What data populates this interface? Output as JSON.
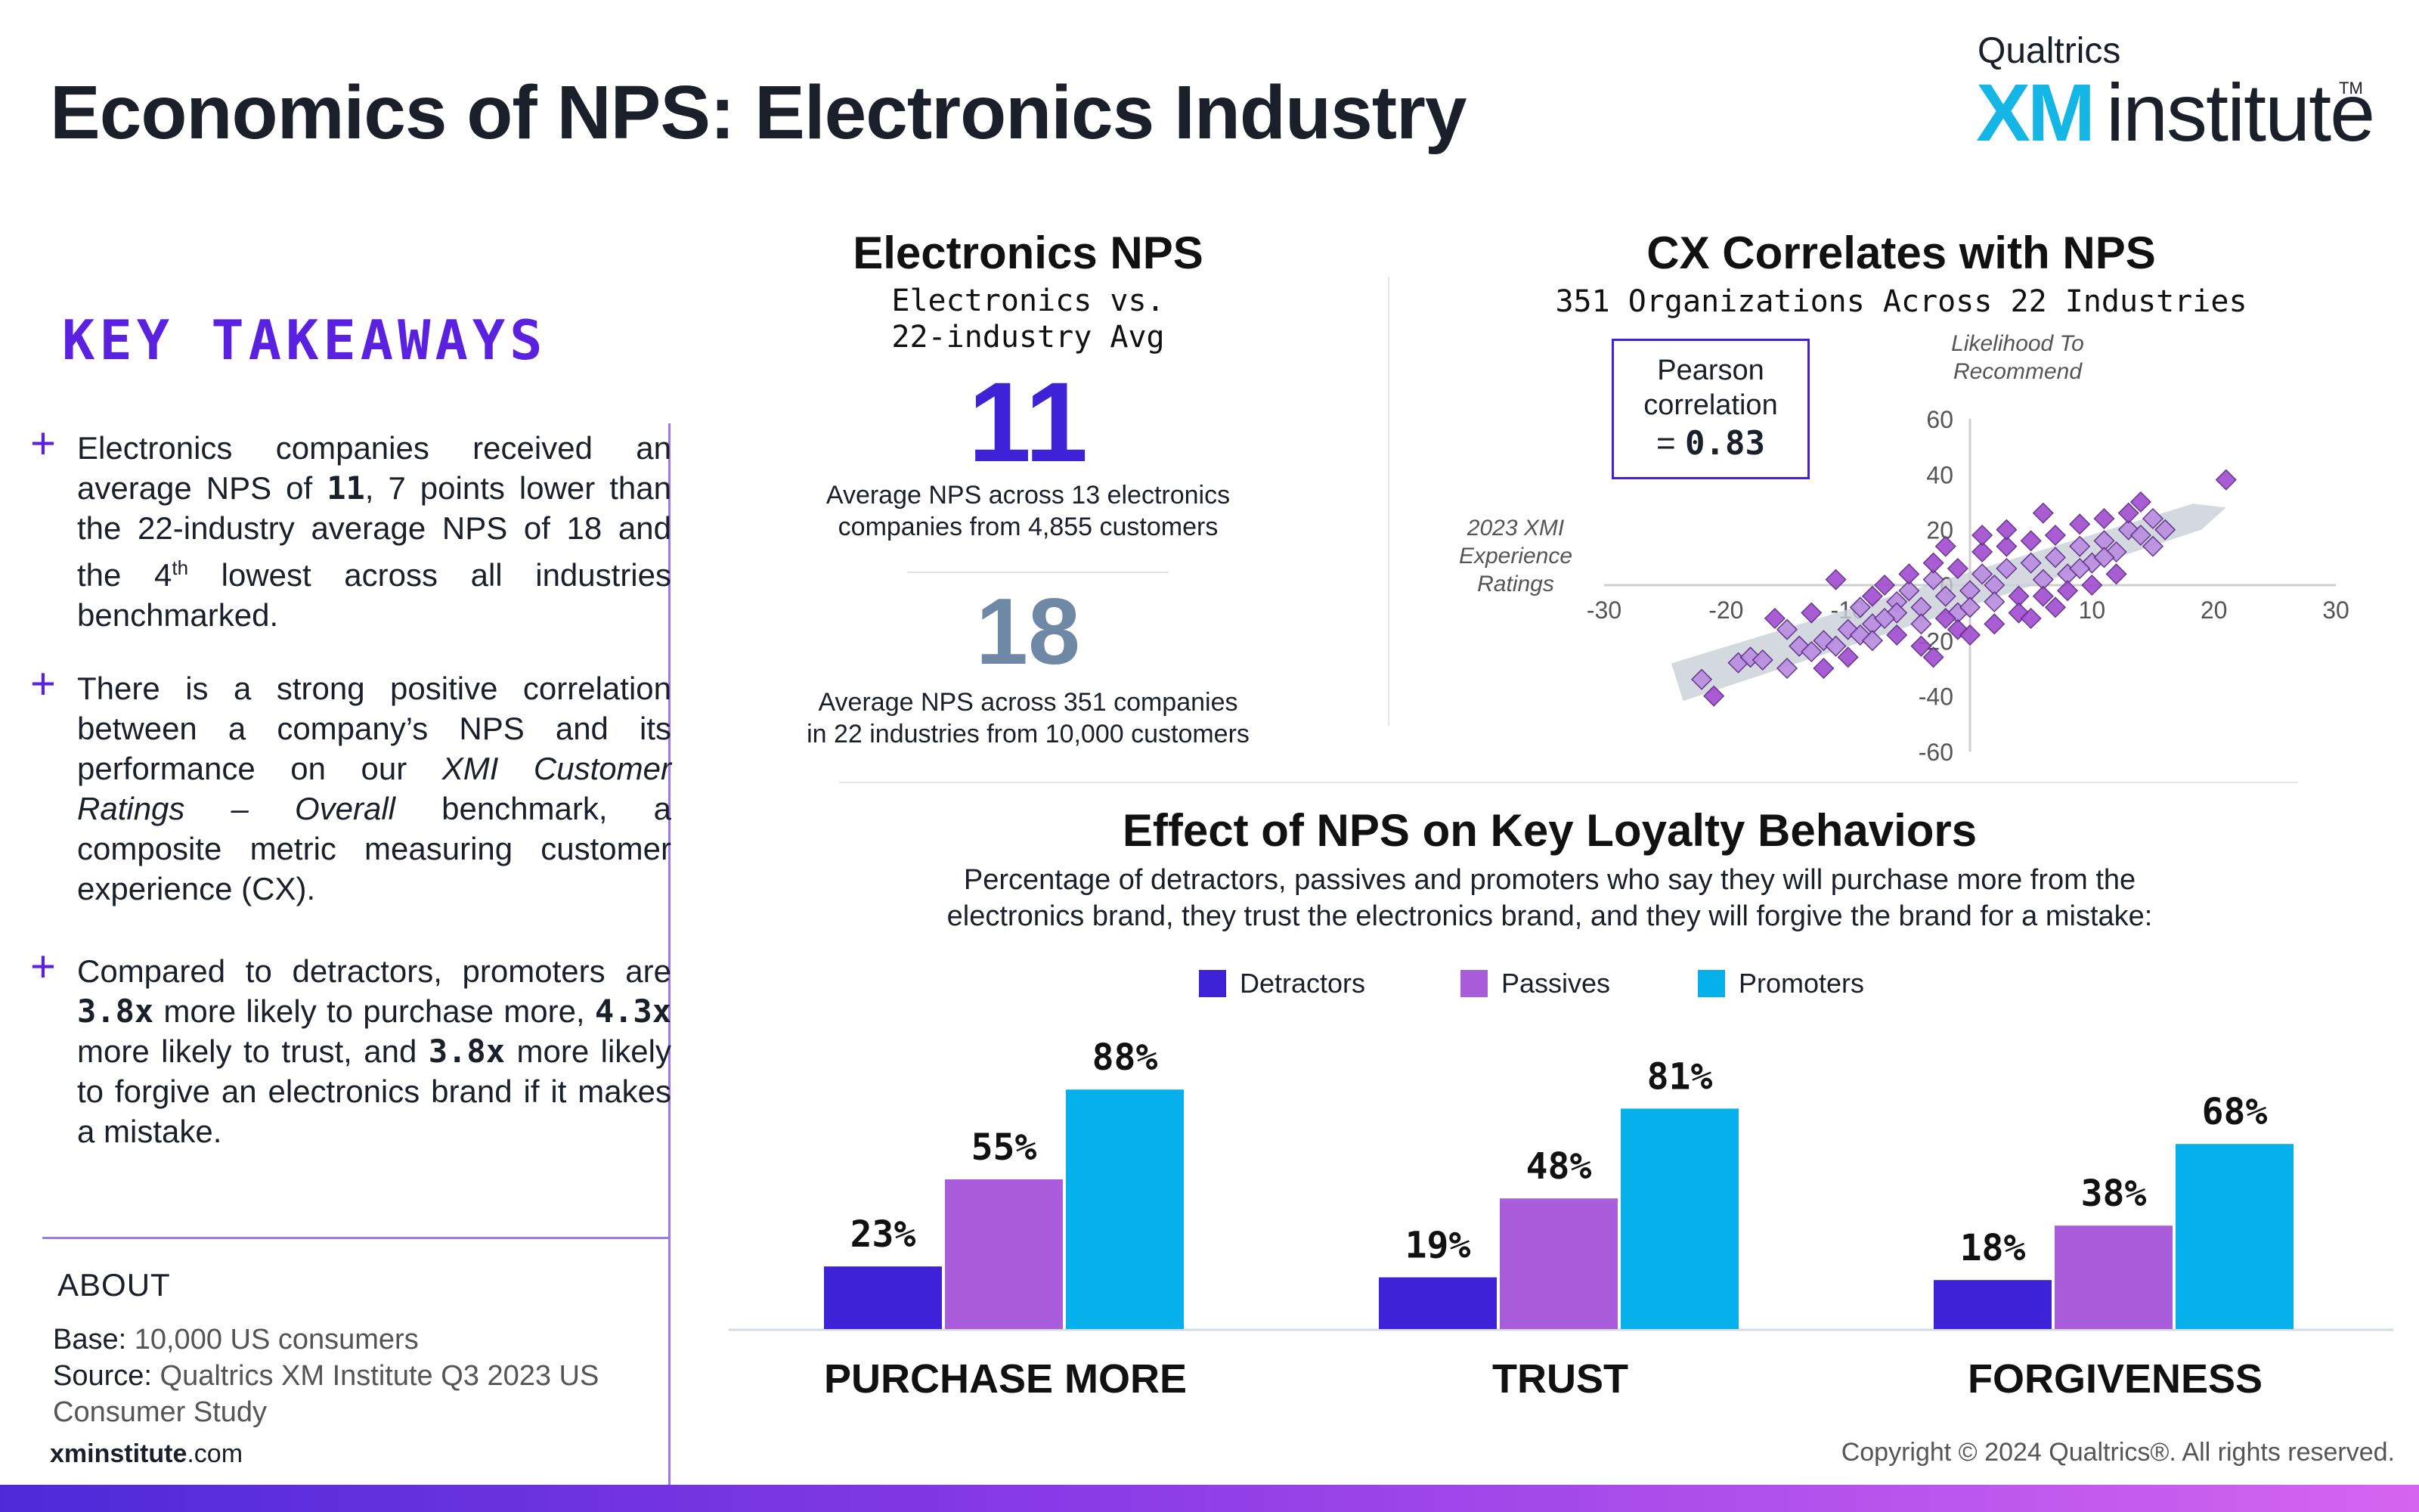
{
  "header": {
    "title": "Economics of NPS: Electronics Industry",
    "brand_top": "Qualtrics",
    "brand_xm": "XM",
    "brand_institute": "institute",
    "brand_tm": "TM"
  },
  "takeaways": {
    "title": "KEY TAKEAWAYS",
    "items": [
      {
        "t1": "Electronics companies received an average NPS of ",
        "b1": "11",
        "t2": ", 7 points lower than the 22-industry average NPS of 18 and the 4",
        "sup": "th",
        "t3": " lowest across all industries benchmarked."
      },
      {
        "t1": " There is a strong positive correlation between a company’s NPS and its performance on our ",
        "i1": "XMI Customer Ratings – Overall",
        "t2": " benchmark, a composite metric measuring customer experience (CX)."
      },
      {
        "t1": "Compared to detractors, promoters are ",
        "b1": "3.8x",
        "t2": " more likely to purchase more, ",
        "b2": "4.3x",
        "t3": " more likely to trust, and ",
        "b3": "3.8x",
        "t4": " more likely to forgive an electronics brand if it makes a mistake."
      }
    ]
  },
  "about": {
    "title": "ABOUT",
    "base_key": "Base:",
    "base_val": " 10,000 US consumers",
    "source_key": "Source:",
    "source_val1": " Qualtrics XM Institute Q3 2023 US",
    "source_val2": "Consumer Study",
    "site_bold": "xminstitute",
    "site_rest": ".com"
  },
  "copyright": "Copyright © 2024 Qualtrics®. All rights reserved.",
  "nps": {
    "title": "Electronics NPS",
    "sub1": "Electronics vs.",
    "sub2": "22-industry Avg",
    "value_main": "11",
    "cap_main1": "Average NPS across 13 electronics",
    "cap_main2": "companies from 4,855 customers",
    "value_avg": "18",
    "cap_avg1": "Average NPS across 351 companies",
    "cap_avg2": "in 22 industries from 10,000 customers"
  },
  "cx": {
    "title": "CX Correlates with NPS",
    "subtitle": "351 Organizations Across 22 Industries",
    "pearson_l1": "Pearson",
    "pearson_l2": "correlation",
    "pearson_eq": "= ",
    "pearson_val": "0.83",
    "y_label1": "Likelihood To",
    "y_label2": "Recommend",
    "x_label1": "2023 XMI",
    "x_label2": "Experience",
    "x_label3": "Ratings"
  },
  "effect": {
    "title": "Effect of NPS on Key Loyalty Behaviors",
    "sub1": "Percentage of detractors, passives and promoters who say they will purchase more from the",
    "sub2": "electronics brand, they trust the electronics brand, and they will forgive the brand for a mistake:"
  },
  "chart_data": [
    {
      "type": "scatter",
      "title": "CX Correlates with NPS",
      "subtitle": "351 Organizations Across 22 Industries",
      "xlabel": "2023 XMI Experience Ratings",
      "ylabel": "Likelihood To Recommend",
      "xlim": [
        -30,
        30
      ],
      "ylim": [
        -60,
        60
      ],
      "xticks": [
        -30,
        -20,
        -10,
        0,
        10,
        20,
        30
      ],
      "yticks": [
        -60,
        -40,
        -20,
        0,
        20,
        40,
        60
      ],
      "tick_labels_x": [
        "-30",
        "-20",
        "-10",
        "10",
        "20",
        "30"
      ],
      "tick_labels_y": [
        "60",
        "40",
        "20",
        "0",
        "-20",
        "-40",
        "-60"
      ],
      "annotation": "Pearson correlation = 0.83",
      "trend": {
        "x": [
          -24,
          21
        ],
        "y": [
          -35,
          28
        ]
      },
      "points": [
        [
          21,
          38
        ],
        [
          -21,
          -40
        ],
        [
          -22,
          -34
        ],
        [
          -19,
          -28
        ],
        [
          -18,
          -26
        ],
        [
          -17,
          -27
        ],
        [
          -15,
          -30
        ],
        [
          -14,
          -22
        ],
        [
          -13,
          -24
        ],
        [
          -12,
          -20
        ],
        [
          -11,
          -22
        ],
        [
          -10,
          -16
        ],
        [
          -9,
          -18
        ],
        [
          -8,
          -14
        ],
        [
          -11,
          2
        ],
        [
          -8,
          -4
        ],
        [
          -7,
          0
        ],
        [
          -6,
          -6
        ],
        [
          -5,
          -2
        ],
        [
          -4,
          -8
        ],
        [
          -3,
          2
        ],
        [
          -2,
          -4
        ],
        [
          -1,
          -10
        ],
        [
          0,
          -2
        ],
        [
          1,
          4
        ],
        [
          2,
          0
        ],
        [
          3,
          6
        ],
        [
          4,
          -4
        ],
        [
          5,
          8
        ],
        [
          6,
          2
        ],
        [
          7,
          10
        ],
        [
          8,
          4
        ],
        [
          9,
          14
        ],
        [
          10,
          8
        ],
        [
          11,
          16
        ],
        [
          12,
          12
        ],
        [
          13,
          20
        ],
        [
          14,
          18
        ],
        [
          15,
          24
        ],
        [
          -6,
          -10
        ],
        [
          -4,
          -14
        ],
        [
          -2,
          -12
        ],
        [
          0,
          -8
        ],
        [
          2,
          -6
        ],
        [
          4,
          -10
        ],
        [
          6,
          -4
        ],
        [
          8,
          -2
        ],
        [
          -5,
          4
        ],
        [
          -3,
          8
        ],
        [
          -1,
          6
        ],
        [
          1,
          12
        ],
        [
          3,
          14
        ],
        [
          5,
          16
        ],
        [
          7,
          18
        ],
        [
          9,
          22
        ],
        [
          11,
          24
        ],
        [
          13,
          26
        ],
        [
          14,
          30
        ],
        [
          6,
          26
        ],
        [
          3,
          20
        ],
        [
          1,
          18
        ],
        [
          -2,
          14
        ],
        [
          -9,
          -8
        ],
        [
          -7,
          -12
        ],
        [
          -8,
          -20
        ],
        [
          -6,
          -18
        ],
        [
          -10,
          -26
        ],
        [
          -12,
          -30
        ],
        [
          -4,
          -22
        ],
        [
          -1,
          -16
        ],
        [
          2,
          -14
        ],
        [
          5,
          -12
        ],
        [
          7,
          -8
        ],
        [
          10,
          0
        ],
        [
          12,
          4
        ],
        [
          15,
          14
        ],
        [
          16,
          20
        ],
        [
          -15,
          -16
        ],
        [
          -13,
          -10
        ],
        [
          -16,
          -12
        ],
        [
          -3,
          -26
        ],
        [
          0,
          -18
        ],
        [
          9,
          6
        ],
        [
          11,
          10
        ]
      ]
    },
    {
      "type": "bar",
      "title": "Effect of NPS on Key Loyalty Behaviors",
      "categories": [
        "PURCHASE MORE",
        "TRUST",
        "FORGIVENESS"
      ],
      "series": [
        {
          "name": "Detractors",
          "values": [
            23,
            19,
            18
          ],
          "color": "#3d22d8"
        },
        {
          "name": "Passives",
          "values": [
            55,
            48,
            38
          ],
          "color": "#a95ddb"
        },
        {
          "name": "Promoters",
          "values": [
            88,
            81,
            68
          ],
          "color": "#06b0ea"
        }
      ],
      "value_labels": [
        [
          "23%",
          "19%",
          "18%"
        ],
        [
          "55%",
          "48%",
          "38%"
        ],
        [
          "88%",
          "81%",
          "68%"
        ]
      ],
      "ylim": [
        0,
        100
      ],
      "legend": "top-center"
    }
  ]
}
